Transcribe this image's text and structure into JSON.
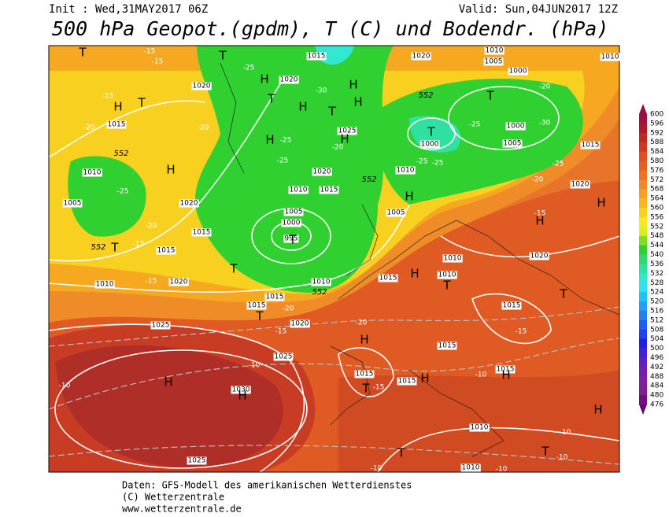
{
  "header": {
    "init": "Init : Wed,31MAY2017 06Z",
    "valid": "Valid: Sun,04JUN2017 12Z",
    "title": "500 hPa Geopot.(gpdm), T (C) und Bodendr. (hPa)"
  },
  "footer": [
    "Daten: GFS-Modell des amerikanischen Wetterdienstes",
    "(C) Wetterzentrale",
    "www.wetterzentrale.de"
  ],
  "colorbar": {
    "labels": [
      600,
      596,
      592,
      588,
      584,
      580,
      576,
      572,
      568,
      564,
      560,
      556,
      552,
      548,
      544,
      540,
      536,
      532,
      528,
      524,
      520,
      516,
      512,
      508,
      504,
      500,
      496,
      492,
      488,
      484,
      480,
      476
    ],
    "colors": [
      "#a01040",
      "#b01828",
      "#c02820",
      "#d03820",
      "#e05020",
      "#e86020",
      "#f07020",
      "#f08828",
      "#f5a020",
      "#f8b820",
      "#f8d020",
      "#f8e820",
      "#d8f020",
      "#80e020",
      "#30d030",
      "#30d870",
      "#30e0a0",
      "#30e8d0",
      "#30e0f0",
      "#20c0f8",
      "#20a0f8",
      "#2080f0",
      "#2060f0",
      "#2040f0",
      "#2020e0",
      "#4020d0",
      "#6020c0",
      "#7020b0",
      "#8020a0",
      "#802090",
      "#701080"
    ]
  },
  "isobar_labels": [
    "1015",
    "1020",
    "1010",
    "1005",
    "1010",
    "1000",
    "1020",
    "1020",
    "1015",
    "1025",
    "1000",
    "1005",
    "1015",
    "1000",
    "1010",
    "1020",
    "1010",
    "1010",
    "1015",
    "1020",
    "1005",
    "1020",
    "1005",
    "1000",
    "995",
    "1015",
    "1015",
    "1005",
    "1020",
    "1010",
    "1010",
    "1015",
    "1010",
    "1020",
    "1010",
    "1015",
    "1015",
    "1020",
    "1015",
    "1025",
    "1015",
    "1025",
    "1015",
    "1015",
    "1015",
    "1030",
    "1010",
    "1025",
    "1010"
  ],
  "temperature_labels": [
    "-15",
    "-15",
    "-15",
    "-20",
    "-20",
    "-25",
    "-30",
    "-25",
    "-25",
    "-20",
    "-30",
    "-25",
    "-20",
    "-25",
    "-25",
    "-25",
    "-20",
    "-15",
    "-15",
    "-20",
    "-25",
    "-20",
    "-15",
    "-20",
    "-15",
    "-15",
    "-10",
    "-10",
    "-15",
    "-10",
    "-10",
    "-10",
    "-10",
    "-10"
  ],
  "pressure_centers": [
    "T",
    "H",
    "H",
    "H",
    "T",
    "T",
    "H",
    "T",
    "T",
    "H",
    "H",
    "H",
    "H",
    "T",
    "T",
    "H",
    "H",
    "H",
    "T",
    "T",
    "T",
    "T",
    "H",
    "T",
    "T",
    "H",
    "H",
    "H",
    "T",
    "H",
    "H",
    "H",
    "T",
    "T"
  ],
  "contour_552_labels": [
    "552",
    "552",
    "552",
    "552",
    "552"
  ]
}
